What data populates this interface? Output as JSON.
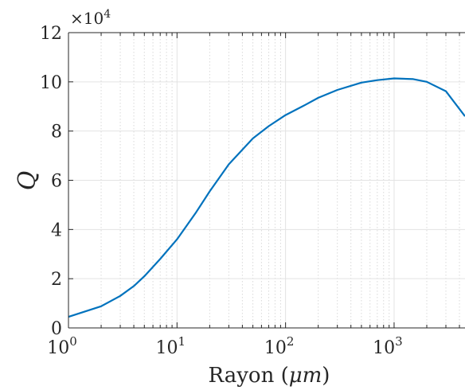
{
  "chart_data": {
    "type": "line",
    "xlabel": "Rayon (μm)",
    "xlabel_prefix": "Rayon (",
    "xlabel_unit": "μm",
    "xlabel_suffix": ")",
    "ylabel": "Q",
    "y_multiplier": "×10^4",
    "y_multiplier_base": "×10",
    "y_multiplier_exp": "4",
    "x_scale": "log",
    "xlim": [
      1,
      4500
    ],
    "ylim": [
      0,
      120000
    ],
    "grid": true,
    "x_ticks": [
      {
        "value": 1,
        "base": "10",
        "exp": "0"
      },
      {
        "value": 10,
        "base": "10",
        "exp": "1"
      },
      {
        "value": 100,
        "base": "10",
        "exp": "2"
      },
      {
        "value": 1000,
        "base": "10",
        "exp": "3"
      }
    ],
    "y_ticks": [
      {
        "value": 0,
        "label": "0"
      },
      {
        "value": 20000,
        "label": "2"
      },
      {
        "value": 40000,
        "label": "4"
      },
      {
        "value": 60000,
        "label": "6"
      },
      {
        "value": 80000,
        "label": "8"
      },
      {
        "value": 100000,
        "label": "10"
      },
      {
        "value": 120000,
        "label": "12"
      }
    ],
    "series": [
      {
        "color": "#0072BD",
        "x": [
          1,
          2,
          3,
          4,
          5,
          7,
          10,
          15,
          20,
          30,
          50,
          70,
          100,
          150,
          200,
          300,
          500,
          700,
          1000,
          1500,
          2000,
          3000,
          4500
        ],
        "y": [
          4500,
          8800,
          13000,
          17000,
          21000,
          28000,
          36000,
          47000,
          55500,
          66500,
          77000,
          82000,
          86500,
          90500,
          93500,
          96700,
          99700,
          100700,
          101400,
          101100,
          100000,
          96200,
          86000
        ]
      }
    ]
  }
}
